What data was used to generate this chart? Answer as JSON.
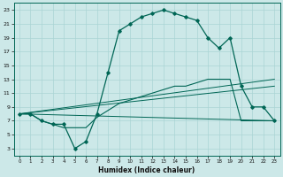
{
  "xlabel": "Humidex (Indice chaleur)",
  "bg_color": "#cce8e8",
  "line_color": "#006655",
  "grid_color": "#aad4d4",
  "xlim": [
    -0.5,
    23.5
  ],
  "ylim": [
    2,
    24
  ],
  "yticks": [
    3,
    5,
    7,
    9,
    11,
    13,
    15,
    17,
    19,
    21,
    23
  ],
  "xticks": [
    0,
    1,
    2,
    3,
    4,
    5,
    6,
    7,
    8,
    9,
    10,
    11,
    12,
    13,
    14,
    15,
    16,
    17,
    18,
    19,
    20,
    21,
    22,
    23
  ],
  "main_x": [
    0,
    1,
    2,
    3,
    4,
    5,
    6,
    7,
    8,
    9,
    10,
    11,
    12,
    13,
    14,
    15,
    16,
    17,
    18,
    19,
    20,
    21,
    22,
    23
  ],
  "main_y": [
    8,
    8,
    7,
    6.5,
    6.5,
    3,
    4,
    8,
    14,
    20,
    21,
    22,
    22.5,
    23,
    22.5,
    22,
    21.5,
    19,
    17.5,
    19,
    12,
    9,
    9,
    7
  ],
  "line2_x": [
    0,
    1,
    2,
    3,
    4,
    5,
    6,
    7,
    8,
    9,
    10,
    11,
    12,
    13,
    14,
    15,
    16,
    17,
    18,
    19,
    20,
    21,
    22,
    23
  ],
  "line2_y": [
    8,
    8,
    7,
    6.5,
    6,
    6,
    6,
    7.5,
    8.5,
    9.5,
    10,
    10.5,
    11,
    11.5,
    12,
    12,
    12.5,
    13,
    13,
    13,
    7,
    7,
    7,
    7
  ],
  "line3_x": [
    0,
    23
  ],
  "line3_y": [
    8,
    13
  ],
  "line4_x": [
    0,
    23
  ],
  "line4_y": [
    8,
    12
  ],
  "line5_x": [
    0,
    23
  ],
  "line5_y": [
    8,
    7
  ]
}
